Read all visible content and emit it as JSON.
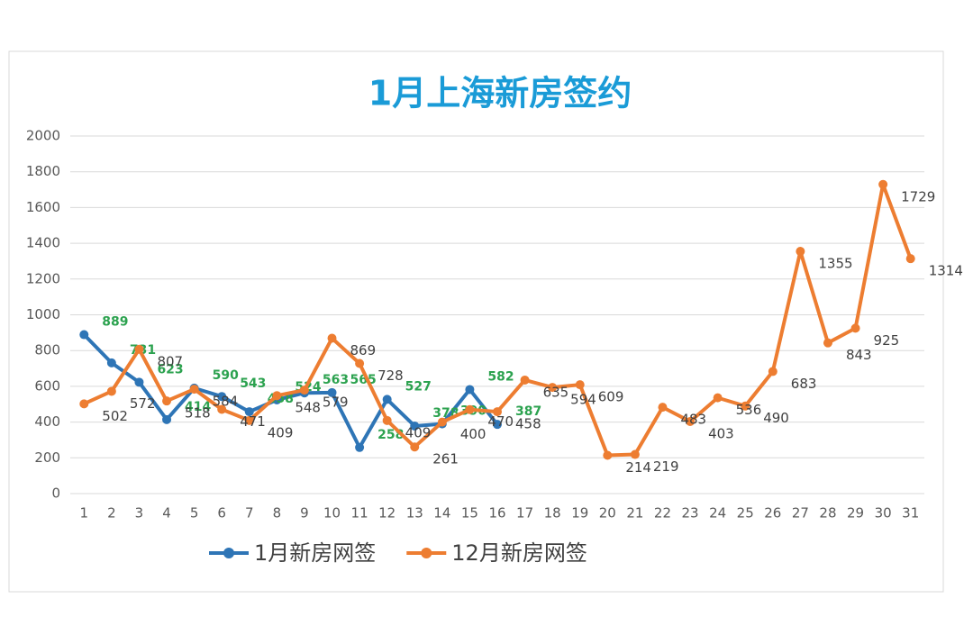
{
  "chart_data": {
    "type": "line",
    "title": "1月上海新房签约",
    "categories": [
      "1",
      "2",
      "3",
      "4",
      "5",
      "6",
      "7",
      "8",
      "9",
      "10",
      "11",
      "12",
      "13",
      "14",
      "15",
      "16",
      "17",
      "18",
      "19",
      "20",
      "21",
      "22",
      "23",
      "24",
      "25",
      "26",
      "27",
      "28",
      "29",
      "30",
      "31"
    ],
    "series": [
      {
        "name": "1月新房网签",
        "color": "#2e75b6",
        "label_color": "#2ca24f",
        "values": [
          889,
          731,
          623,
          414,
          590,
          543,
          458,
          524,
          563,
          565,
          258,
          527,
          378,
          390,
          582,
          387,
          null,
          null,
          null,
          null,
          null,
          null,
          null,
          null,
          null,
          null,
          null,
          null,
          null,
          null,
          null
        ]
      },
      {
        "name": "12月新房网签",
        "color": "#ed7d31",
        "label_color": "#404040",
        "values": [
          502,
          572,
          807,
          518,
          584,
          471,
          409,
          548,
          579,
          869,
          728,
          409,
          261,
          400,
          470,
          458,
          635,
          594,
          609,
          214,
          219,
          483,
          403,
          536,
          490,
          683,
          1355,
          843,
          925,
          1729,
          1314
        ]
      }
    ],
    "ylim": [
      0,
      2000
    ],
    "yticks": [
      0,
      200,
      400,
      600,
      800,
      1000,
      1200,
      1400,
      1600,
      1800,
      2000
    ],
    "grid": true,
    "legend": "bottom"
  }
}
